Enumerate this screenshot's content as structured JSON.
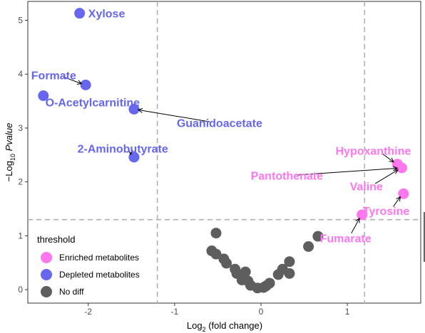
{
  "chart_data": {
    "type": "scatter",
    "xlabel": {
      "pre": "Log",
      "sub": "2",
      "post": " (fold change)"
    },
    "ylabel": {
      "pre": "−Log",
      "sub": "10",
      "post": " Pvalue"
    },
    "xlim": [
      -2.7,
      1.85
    ],
    "ylim": [
      -0.25,
      5.35
    ],
    "xticks": [
      -2,
      -1,
      0,
      1
    ],
    "yticks": [
      0,
      1,
      2,
      3,
      4,
      5
    ],
    "grid": false,
    "thresholds": {
      "x": [
        -1.2,
        1.2
      ],
      "y": 1.3
    },
    "legend": {
      "title": "threshold",
      "position": "bottom-left",
      "entries": [
        {
          "name": "Enriched metabolites",
          "color": "#FF77EE"
        },
        {
          "name": "Depleted metabolites",
          "color": "#6666EE"
        },
        {
          "name": "No diff",
          "color": "#5E5E5E"
        }
      ]
    },
    "colors": {
      "enriched": "#FF77EE",
      "depleted": "#6666EE",
      "nodiff": "#5E5E5E"
    },
    "points": [
      {
        "x": -2.1,
        "y": 5.13,
        "group": "depleted"
      },
      {
        "x": -2.52,
        "y": 3.6,
        "group": "depleted"
      },
      {
        "x": -2.03,
        "y": 3.8,
        "group": "depleted"
      },
      {
        "x": -1.47,
        "y": 3.35,
        "group": "depleted"
      },
      {
        "x": -1.47,
        "y": 2.46,
        "group": "depleted"
      },
      {
        "x": 1.58,
        "y": 2.33,
        "group": "enriched"
      },
      {
        "x": 1.63,
        "y": 2.26,
        "group": "enriched"
      },
      {
        "x": 1.65,
        "y": 1.78,
        "group": "enriched"
      },
      {
        "x": 1.17,
        "y": 1.39,
        "group": "enriched"
      },
      {
        "x": -0.52,
        "y": 1.05,
        "group": "nodiff"
      },
      {
        "x": -0.57,
        "y": 0.72,
        "group": "nodiff"
      },
      {
        "x": -0.52,
        "y": 0.66,
        "group": "nodiff"
      },
      {
        "x": -0.43,
        "y": 0.57,
        "group": "nodiff"
      },
      {
        "x": -0.4,
        "y": 0.49,
        "group": "nodiff"
      },
      {
        "x": -0.3,
        "y": 0.38,
        "group": "nodiff"
      },
      {
        "x": -0.28,
        "y": 0.3,
        "group": "nodiff"
      },
      {
        "x": -0.18,
        "y": 0.33,
        "group": "nodiff"
      },
      {
        "x": -0.22,
        "y": 0.18,
        "group": "nodiff"
      },
      {
        "x": -0.15,
        "y": 0.16,
        "group": "nodiff"
      },
      {
        "x": -0.12,
        "y": 0.08,
        "group": "nodiff"
      },
      {
        "x": -0.04,
        "y": 0.03,
        "group": "nodiff"
      },
      {
        "x": 0.03,
        "y": 0.04,
        "group": "nodiff"
      },
      {
        "x": 0.06,
        "y": 0.07,
        "group": "nodiff"
      },
      {
        "x": 0.1,
        "y": 0.12,
        "group": "nodiff"
      },
      {
        "x": 0.2,
        "y": 0.28,
        "group": "nodiff"
      },
      {
        "x": 0.25,
        "y": 0.38,
        "group": "nodiff"
      },
      {
        "x": 0.33,
        "y": 0.52,
        "group": "nodiff"
      },
      {
        "x": 0.33,
        "y": 0.3,
        "group": "nodiff"
      },
      {
        "x": 0.55,
        "y": 0.8,
        "group": "nodiff"
      },
      {
        "x": 0.66,
        "y": 0.99,
        "group": "nodiff"
      }
    ],
    "annotations": [
      {
        "text": "Xylose",
        "group": "depleted",
        "px": -2.1,
        "py": 5.13,
        "tx": -2.0,
        "ty": 5.13,
        "anchor": "start",
        "arrow": false
      },
      {
        "text": "Formate",
        "group": "depleted",
        "px": -2.03,
        "py": 3.8,
        "tx": -2.4,
        "ty": 3.98,
        "anchor": "middle",
        "arrow": true
      },
      {
        "text": "O-Acetylcarnitine",
        "group": "depleted",
        "px": -2.52,
        "py": 3.6,
        "tx": -1.95,
        "ty": 3.48,
        "anchor": "middle",
        "arrow": false
      },
      {
        "text": "Guanidoacetate",
        "group": "depleted",
        "px": -1.47,
        "py": 3.35,
        "tx": -0.48,
        "ty": 3.1,
        "anchor": "middle",
        "arrow": true
      },
      {
        "text": "2-Aminobutyrate",
        "group": "depleted",
        "px": -1.47,
        "py": 2.46,
        "tx": -1.6,
        "ty": 2.62,
        "anchor": "middle",
        "arrow": true
      },
      {
        "text": "Hypoxanthine",
        "group": "enriched",
        "px": 1.58,
        "py": 2.33,
        "tx": 1.3,
        "ty": 2.58,
        "anchor": "middle",
        "arrow": true
      },
      {
        "text": "Pantothenate",
        "group": "enriched",
        "px": 1.63,
        "py": 2.26,
        "tx": 0.3,
        "ty": 2.12,
        "anchor": "middle",
        "arrow": true
      },
      {
        "text": "Valine",
        "group": "enriched",
        "px": 1.63,
        "py": 2.26,
        "tx": 1.22,
        "ty": 1.92,
        "anchor": "middle",
        "arrow": true
      },
      {
        "text": "Tyrosine",
        "group": "enriched",
        "px": 1.65,
        "py": 1.78,
        "tx": 1.45,
        "ty": 1.47,
        "anchor": "middle",
        "arrow": true
      },
      {
        "text": "Fumarate",
        "group": "enriched",
        "px": 1.17,
        "py": 1.39,
        "tx": 0.98,
        "ty": 0.96,
        "anchor": "middle",
        "arrow": true
      }
    ]
  }
}
